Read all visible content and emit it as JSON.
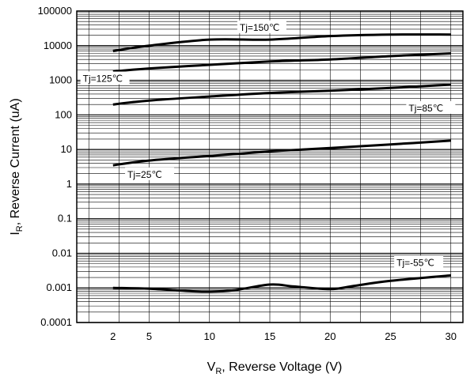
{
  "chart_data": {
    "type": "line",
    "title": "",
    "xlabel": {
      "prefix": "V",
      "sub": "R",
      "suffix": ", Reverse Voltage (V)"
    },
    "ylabel": {
      "prefix": "I",
      "sub": "R",
      "suffix": ", Reverse Current (uA)"
    },
    "x_scale": "linear",
    "y_scale": "log",
    "xlim": [
      -1,
      31
    ],
    "ylim": [
      0.0001,
      100000
    ],
    "x_ticks": [
      2,
      5,
      10,
      15,
      20,
      25,
      30
    ],
    "x_tick_labels": [
      "2",
      "5",
      "10",
      "15",
      "20",
      "25",
      "30"
    ],
    "y_ticks": [
      0.0001,
      0.001,
      0.01,
      0.1,
      1,
      10,
      100,
      1000,
      10000,
      100000
    ],
    "y_tick_labels": [
      "0.0001",
      "0.001",
      "0.01",
      "0.1",
      "1",
      "10",
      "100",
      "1000",
      "10000",
      "100000"
    ],
    "grid": true,
    "series": [
      {
        "name": "Tj=150℃",
        "x": [
          2,
          5,
          10,
          15,
          20,
          25,
          30
        ],
        "y": [
          7000,
          10000,
          15000,
          15000,
          19000,
          21000,
          21000
        ]
      },
      {
        "name": "Tj=125℃",
        "x": [
          2,
          5,
          10,
          15,
          20,
          25,
          30
        ],
        "y": [
          1800,
          2200,
          2800,
          3500,
          4000,
          5000,
          6000
        ]
      },
      {
        "name": "Tj=85℃",
        "x": [
          2,
          5,
          10,
          15,
          20,
          25,
          30
        ],
        "y": [
          200,
          260,
          340,
          430,
          500,
          600,
          750
        ]
      },
      {
        "name": "Tj=25℃",
        "x": [
          2,
          5,
          10,
          15,
          20,
          25,
          30
        ],
        "y": [
          3.5,
          4.8,
          6.5,
          8.8,
          11,
          14,
          18
        ]
      },
      {
        "name": "Tj=-55℃",
        "x": [
          2,
          5,
          8,
          10,
          12,
          15,
          17,
          20,
          22,
          25,
          30
        ],
        "y": [
          0.001,
          0.00095,
          0.00082,
          0.00078,
          0.00085,
          0.00125,
          0.0011,
          0.00092,
          0.00115,
          0.0016,
          0.0023
        ]
      }
    ],
    "annotations": [
      "Tj=150℃",
      "Tj=125℃",
      "Tj=85℃",
      "Tj=25℃",
      "Tj=-55℃"
    ]
  }
}
